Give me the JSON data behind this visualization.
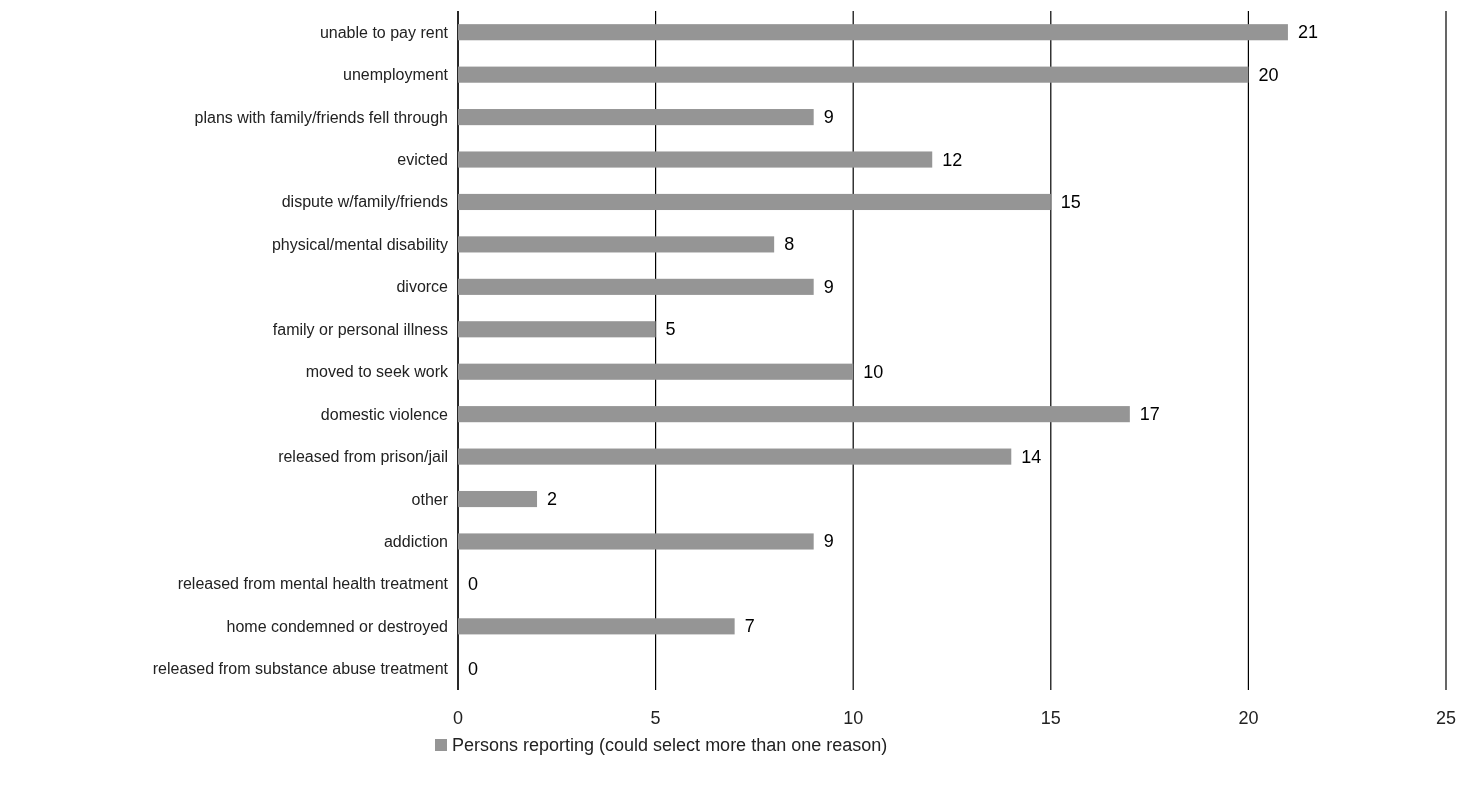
{
  "chart_data": {
    "type": "bar",
    "orientation": "horizontal",
    "categories": [
      "unable to pay rent",
      "unemployment",
      "plans with family/friends fell through",
      "evicted",
      "dispute w/family/friends",
      "physical/mental disability",
      "divorce",
      "family or personal illness",
      "moved to seek work",
      "domestic violence",
      "released from prison/jail",
      "other",
      "addiction",
      "released from mental health treatment",
      "home condemned or destroyed",
      "released from substance abuse treatment"
    ],
    "series": [
      {
        "name": "Persons reporting (could select more than one reason)",
        "color": "#959595",
        "values": [
          21,
          20,
          9,
          12,
          15,
          8,
          9,
          5,
          10,
          17,
          14,
          2,
          9,
          0,
          7,
          0
        ]
      }
    ],
    "xlim": [
      0,
      25
    ],
    "xticks": [
      0,
      5,
      10,
      15,
      20,
      25
    ],
    "grid": "x",
    "data_labels": true,
    "legend": "bottom"
  }
}
